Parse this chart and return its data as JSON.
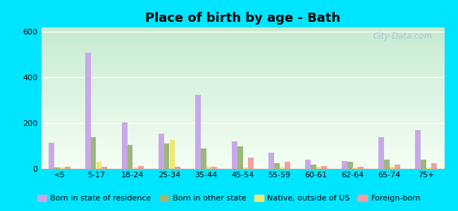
{
  "title": "Place of birth by age - Bath",
  "categories": [
    "<5",
    "5-17",
    "18-24",
    "25-34",
    "35-44",
    "45-54",
    "55-59",
    "60-61",
    "62-64",
    "65-74",
    "75+"
  ],
  "series": {
    "Born in state of residence": [
      115,
      510,
      205,
      155,
      325,
      120,
      70,
      40,
      35,
      140,
      170
    ],
    "Born in other state": [
      5,
      140,
      105,
      110,
      90,
      100,
      25,
      18,
      30,
      40,
      40
    ],
    "Native, outside of US": [
      5,
      30,
      5,
      125,
      8,
      5,
      5,
      10,
      5,
      8,
      5
    ],
    "Foreign-born": [
      8,
      8,
      12,
      8,
      8,
      50,
      30,
      12,
      8,
      18,
      25
    ]
  },
  "colors": {
    "Born in state of residence": "#c8a8e8",
    "Born in other state": "#9ab87a",
    "Native, outside of US": "#f0e870",
    "Foreign-born": "#f0a0a0"
  },
  "ylim": [
    0,
    620
  ],
  "yticks": [
    0,
    200,
    400,
    600
  ],
  "bg_top_color": "#e0f0e8",
  "bg_bottom_color": "#c8e8d0",
  "outer_bg": "#00e5ff",
  "bar_width": 0.15,
  "watermark": "City-Data.com",
  "title_fontsize": 13,
  "tick_fontsize": 8,
  "legend_fontsize": 8
}
